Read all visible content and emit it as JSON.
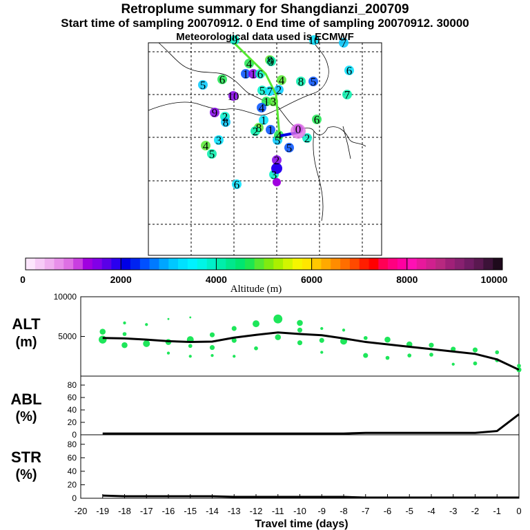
{
  "header": {
    "title": "Retroplume summary for Shangdianzi_200709",
    "sampling_line": "Start time of sampling 20070912.    0     End time of sampling 20070912. 30000",
    "met_line": "Meteorological data used is ECMWF"
  },
  "map": {
    "labels": [
      {
        "text": "9",
        "lon": 125,
        "lat": 1
      },
      {
        "text": "10",
        "lon": 240,
        "lat": 1
      },
      {
        "text": "7",
        "lon": 283,
        "lat": 5
      },
      {
        "text": "4",
        "lon": 146,
        "lat": 35
      },
      {
        "text": "8",
        "lon": 176,
        "lat": 30
      },
      {
        "text": "9",
        "lon": 178,
        "lat": 32
      },
      {
        "text": "1",
        "lon": 141,
        "lat": 50
      },
      {
        "text": "1",
        "lon": 152,
        "lat": 50
      },
      {
        "text": "6",
        "lon": 162,
        "lat": 50
      },
      {
        "text": "6",
        "lon": 291,
        "lat": 45
      },
      {
        "text": "5",
        "lon": 79,
        "lat": 66
      },
      {
        "text": "6",
        "lon": 107,
        "lat": 58
      },
      {
        "text": "4",
        "lon": 193,
        "lat": 59
      },
      {
        "text": "8",
        "lon": 221,
        "lat": 61
      },
      {
        "text": "5",
        "lon": 239,
        "lat": 61
      },
      {
        "text": "10",
        "lon": 123,
        "lat": 82
      },
      {
        "text": "5",
        "lon": 165,
        "lat": 74
      },
      {
        "text": "7",
        "lon": 176,
        "lat": 75
      },
      {
        "text": "2",
        "lon": 189,
        "lat": 73
      },
      {
        "text": "1",
        "lon": 171,
        "lat": 90
      },
      {
        "text": "3",
        "lon": 181,
        "lat": 90
      },
      {
        "text": "7",
        "lon": 288,
        "lat": 80
      },
      {
        "text": "4",
        "lon": 164,
        "lat": 99
      },
      {
        "text": "9",
        "lon": 96,
        "lat": 106
      },
      {
        "text": "2",
        "lon": 111,
        "lat": 112
      },
      {
        "text": "1",
        "lon": 167,
        "lat": 117
      },
      {
        "text": "8",
        "lon": 112,
        "lat": 120
      },
      {
        "text": "6",
        "lon": 244,
        "lat": 116
      },
      {
        "text": "8",
        "lon": 160,
        "lat": 128
      },
      {
        "text": "2",
        "lon": 155,
        "lat": 133
      },
      {
        "text": "1",
        "lon": 177,
        "lat": 131
      },
      {
        "text": "0",
        "lon": 217,
        "lat": 130
      },
      {
        "text": "2",
        "lon": 230,
        "lat": 143
      },
      {
        "text": "3",
        "lon": 102,
        "lat": 146
      },
      {
        "text": "5",
        "lon": 187,
        "lat": 146
      },
      {
        "text": "4",
        "lon": 189,
        "lat": 139
      },
      {
        "text": "4",
        "lon": 83,
        "lat": 154
      },
      {
        "text": "5",
        "lon": 92,
        "lat": 166
      },
      {
        "text": "5",
        "lon": 204,
        "lat": 157
      },
      {
        "text": "2",
        "lon": 186,
        "lat": 175
      },
      {
        "text": "3",
        "lon": 182,
        "lat": 196
      },
      {
        "text": "6",
        "lon": 128,
        "lat": 210
      }
    ]
  },
  "colorbar": {
    "title": "Altitude (m)",
    "tick_labels": [
      "0",
      "2000",
      "4000",
      "6000",
      "8000",
      "10000"
    ],
    "colors": [
      "#fde6fd",
      "#f7cbf7",
      "#f0b0f0",
      "#e890ea",
      "#de70e4",
      "#c93fe0",
      "#a000e0",
      "#8200e8",
      "#5a00e8",
      "#2a00f0",
      "#0000e6",
      "#0023f0",
      "#0050ff",
      "#007aff",
      "#00a6ff",
      "#00c8ff",
      "#00e1ff",
      "#00f2ff",
      "#00f5e6",
      "#00f0c8",
      "#00eeaa",
      "#00e88c",
      "#00e670",
      "#1de650",
      "#55e830",
      "#80ea10",
      "#aaf000",
      "#d2f500",
      "#f5f500",
      "#ffe600",
      "#ffc800",
      "#ffaa00",
      "#ff8c00",
      "#ff6e00",
      "#ff4a00",
      "#ff1e00",
      "#ff0000",
      "#ff0055",
      "#ff0080",
      "#ff00a0",
      "#ff10b4",
      "#e8189c",
      "#d0208e",
      "#b82880",
      "#a02078",
      "#882070",
      "#701c64",
      "#5a1850",
      "#3c1238",
      "#1e0a1c"
    ]
  },
  "chart_data": [
    {
      "type": "line",
      "panel": "ALT",
      "ylabel": "ALT\n(m)",
      "ylabel_line1": "ALT",
      "ylabel_line2": "(m)",
      "ylim": [
        0,
        10000
      ],
      "y_ticks": [
        "10000",
        "5000"
      ],
      "y_tick_values": [
        10000,
        5000
      ],
      "x": [
        -19,
        -18,
        -17,
        -16,
        -15,
        -14,
        -13,
        -12,
        -11,
        -10,
        -9,
        -8,
        -7,
        -6,
        -5,
        -4,
        -3,
        -2,
        -1,
        0
      ],
      "values": [
        4800,
        4750,
        4600,
        4400,
        4300,
        4350,
        4850,
        5200,
        5500,
        5300,
        5150,
        4750,
        4300,
        4000,
        3700,
        3400,
        3100,
        2800,
        2100,
        800
      ],
      "scatter": [
        {
          "x": -19,
          "y": 4600,
          "size": 8
        },
        {
          "x": -19,
          "y": 5600,
          "size": 6
        },
        {
          "x": -18,
          "y": 3900,
          "size": 6
        },
        {
          "x": -18,
          "y": 5300,
          "size": 4
        },
        {
          "x": -18,
          "y": 6700,
          "size": 3
        },
        {
          "x": -17,
          "y": 4100,
          "size": 7
        },
        {
          "x": -17,
          "y": 6500,
          "size": 3
        },
        {
          "x": -16,
          "y": 2900,
          "size": 3
        },
        {
          "x": -16,
          "y": 4300,
          "size": 6
        },
        {
          "x": -16,
          "y": 7200,
          "size": 2
        },
        {
          "x": -15,
          "y": 2500,
          "size": 3
        },
        {
          "x": -15,
          "y": 3800,
          "size": 4
        },
        {
          "x": -15,
          "y": 4600,
          "size": 7
        },
        {
          "x": -15,
          "y": 7400,
          "size": 2
        },
        {
          "x": -14,
          "y": 2600,
          "size": 3
        },
        {
          "x": -14,
          "y": 3600,
          "size": 5
        },
        {
          "x": -14,
          "y": 5200,
          "size": 5
        },
        {
          "x": -13,
          "y": 2500,
          "size": 3
        },
        {
          "x": -13,
          "y": 4500,
          "size": 5
        },
        {
          "x": -13,
          "y": 6000,
          "size": 5
        },
        {
          "x": -12,
          "y": 3500,
          "size": 4
        },
        {
          "x": -12,
          "y": 6600,
          "size": 7
        },
        {
          "x": -11,
          "y": 4900,
          "size": 6
        },
        {
          "x": -11,
          "y": 7200,
          "size": 9
        },
        {
          "x": -10,
          "y": 4200,
          "size": 5
        },
        {
          "x": -10,
          "y": 5800,
          "size": 5
        },
        {
          "x": -10,
          "y": 6700,
          "size": 6
        },
        {
          "x": -9,
          "y": 3000,
          "size": 3
        },
        {
          "x": -9,
          "y": 4500,
          "size": 5
        },
        {
          "x": -9,
          "y": 6000,
          "size": 3
        },
        {
          "x": -8,
          "y": 4400,
          "size": 7
        },
        {
          "x": -8,
          "y": 5800,
          "size": 3
        },
        {
          "x": -7,
          "y": 2600,
          "size": 5
        },
        {
          "x": -7,
          "y": 4800,
          "size": 4
        },
        {
          "x": -6,
          "y": 2300,
          "size": 4
        },
        {
          "x": -6,
          "y": 4600,
          "size": 6
        },
        {
          "x": -5,
          "y": 2600,
          "size": 4
        },
        {
          "x": -5,
          "y": 4000,
          "size": 6
        },
        {
          "x": -4,
          "y": 2700,
          "size": 4
        },
        {
          "x": -4,
          "y": 3900,
          "size": 5
        },
        {
          "x": -3,
          "y": 1500,
          "size": 3
        },
        {
          "x": -3,
          "y": 3400,
          "size": 5
        },
        {
          "x": -2,
          "y": 1600,
          "size": 4
        },
        {
          "x": -2,
          "y": 3300,
          "size": 5
        },
        {
          "x": -1,
          "y": 2000,
          "size": 4
        },
        {
          "x": -1,
          "y": 3000,
          "size": 4
        },
        {
          "x": 0,
          "y": 800,
          "size": 5
        },
        {
          "x": 0,
          "y": 1300,
          "size": 4
        }
      ],
      "color": "#000000",
      "dot_color": "#1ee65a"
    },
    {
      "type": "line",
      "panel": "ABL",
      "ylabel_line1": "ABL",
      "ylabel_line2": "(%)",
      "ylim": [
        0,
        90
      ],
      "y_ticks": [
        "80",
        "60",
        "40",
        "20",
        "0"
      ],
      "y_tick_values": [
        80,
        60,
        40,
        20,
        0
      ],
      "x": [
        -19,
        -18,
        -17,
        -16,
        -15,
        -14,
        -13,
        -12,
        -11,
        -10,
        -9,
        -8,
        -7,
        -6,
        -5,
        -4,
        -3,
        -2,
        -1,
        0
      ],
      "values": [
        2,
        2,
        2,
        2,
        2,
        2,
        2,
        2,
        2,
        2,
        2,
        2,
        3,
        3,
        3,
        3,
        3,
        3,
        6,
        33
      ],
      "color": "#000000"
    },
    {
      "type": "line",
      "panel": "STR",
      "ylabel_line1": "STR",
      "ylabel_line2": "(%)",
      "ylim": [
        0,
        90
      ],
      "y_ticks": [
        "80",
        "60",
        "40",
        "20",
        "0"
      ],
      "y_tick_values": [
        80,
        60,
        40,
        20,
        0
      ],
      "x": [
        -19,
        -18,
        -17,
        -16,
        -15,
        -14,
        -13,
        -12,
        -11,
        -10,
        -9,
        -8,
        -7,
        -6,
        -5,
        -4,
        -3,
        -2,
        -1,
        0
      ],
      "values": [
        4,
        3,
        3,
        3,
        3,
        3,
        2,
        2,
        2,
        2,
        2,
        2,
        1,
        1,
        1,
        1,
        1,
        1,
        1,
        1
      ],
      "color": "#000000",
      "xlabel": "Travel time (days)",
      "x_ticks": [
        "-20",
        "-19",
        "-18",
        "-17",
        "-16",
        "-15",
        "-14",
        "-13",
        "-12",
        "-11",
        "-10",
        "-9",
        "-8",
        "-7",
        "-6",
        "-5",
        "-4",
        "-3",
        "-2",
        "-1",
        "0"
      ],
      "xlim": [
        -20,
        0
      ]
    }
  ]
}
